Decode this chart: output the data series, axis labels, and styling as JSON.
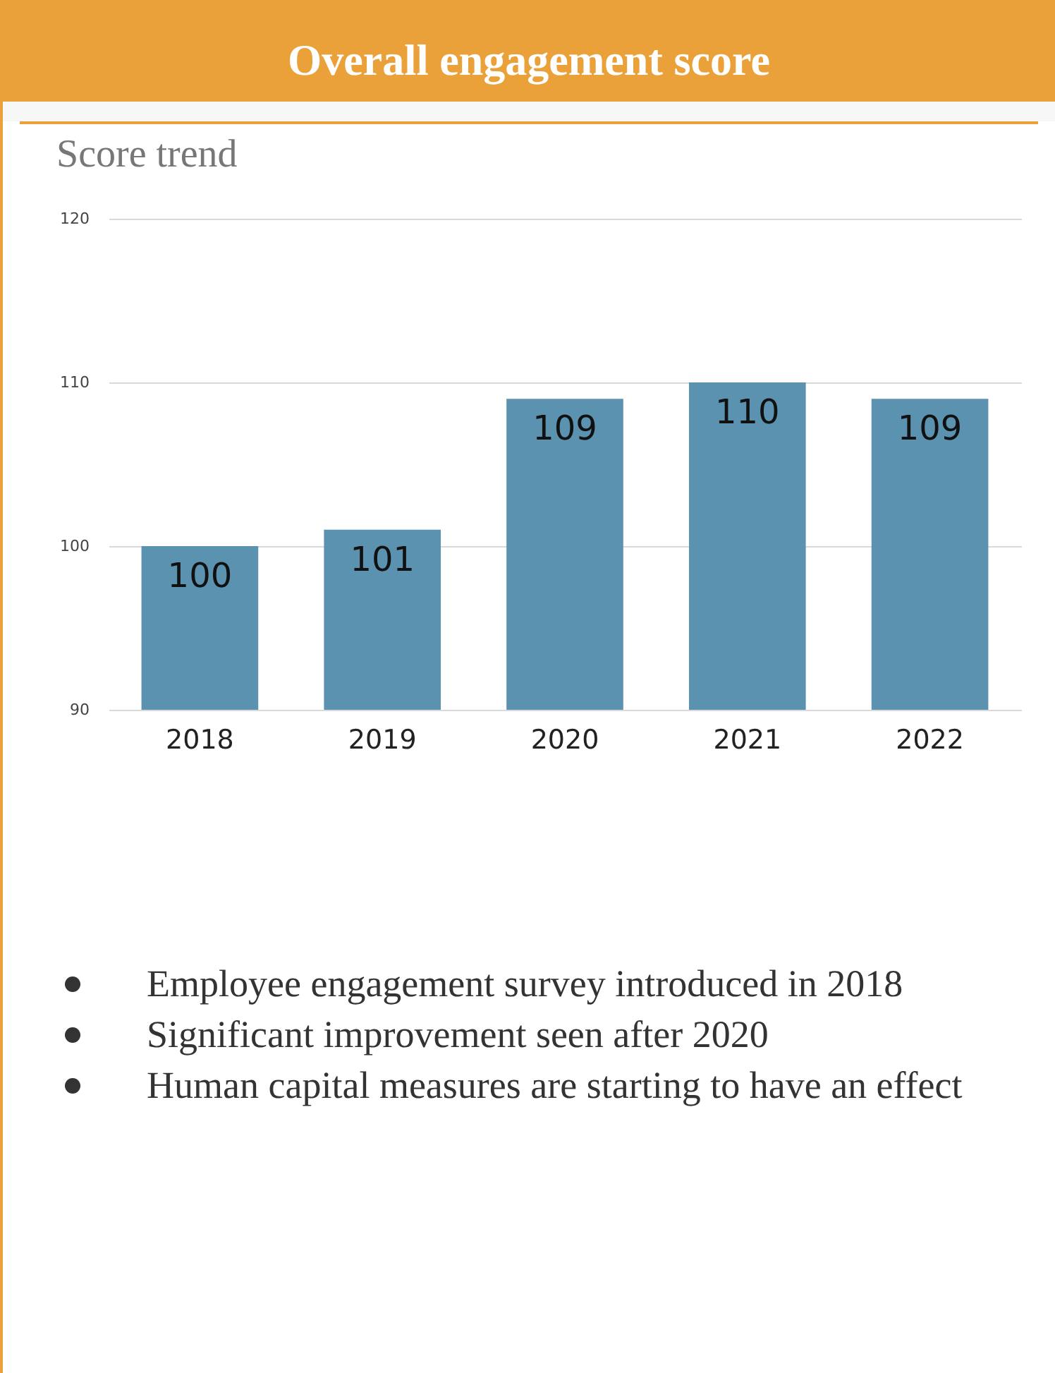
{
  "chart_data": {
    "type": "bar",
    "title": "Overall engagement score",
    "subtitle": "Score trend",
    "categories": [
      "2018",
      "2019",
      "2020",
      "2021",
      "2022"
    ],
    "values": [
      100,
      101,
      109,
      110,
      109
    ],
    "color": "#5b92b0",
    "ylim": [
      90,
      120
    ],
    "yticks": [
      90,
      100,
      110,
      120
    ],
    "grid": "y",
    "data_labels": true,
    "annotations": [
      "Employee engagement survey introduced in 2018",
      "Significant improvement seen after 2020",
      "Human capital measures are starting to have an effect"
    ]
  }
}
